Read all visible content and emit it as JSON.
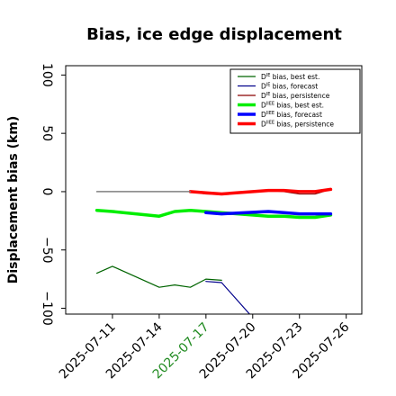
{
  "chart_data": {
    "type": "line",
    "title": "Bias, ice edge displacement",
    "ylabel": "Displacement bias (km)",
    "xlabel": "",
    "ylim": [
      -105,
      108
    ],
    "xlim": [
      "2025-07-08",
      "2025-07-27"
    ],
    "yticks": [
      -100,
      -50,
      0,
      50,
      100
    ],
    "ytick_labels": [
      "−100",
      "−50",
      "0",
      "50",
      "100"
    ],
    "xticks": [
      "2025-07-11",
      "2025-07-14",
      "2025-07-17",
      "2025-07-20",
      "2025-07-23",
      "2025-07-26"
    ],
    "highlight_xtick": "2025-07-17",
    "highlight_color": "#228B22",
    "grid": false,
    "legend_position": "top-right",
    "series": [
      {
        "name": "D^IE bias, best est.",
        "label_base": "D",
        "label_sup": "IE",
        "label_rest": " bias, best est.",
        "color": "#006400",
        "width": 1.2,
        "points": [
          [
            "2025-07-10",
            -70
          ],
          [
            "2025-07-11",
            -64
          ],
          [
            "2025-07-14",
            -82
          ],
          [
            "2025-07-15",
            -80
          ],
          [
            "2025-07-16",
            -82
          ],
          [
            "2025-07-17",
            -75
          ],
          [
            "2025-07-18",
            -76
          ]
        ]
      },
      {
        "name": "D^IE bias, forecast",
        "label_base": "D",
        "label_sup": "IE",
        "label_rest": " bias, forecast",
        "color": "#00008B",
        "width": 1.2,
        "points": [
          [
            "2025-07-17",
            -77
          ],
          [
            "2025-07-18",
            -78
          ],
          [
            "2025-07-20",
            -108
          ],
          [
            "2025-07-21",
            -108
          ]
        ]
      },
      {
        "name": "D^IE bias, persistence",
        "label_base": "D",
        "label_sup": "IE",
        "label_rest": " bias, persistence",
        "color": "#8B0000",
        "width": 1.2,
        "points": [
          [
            "2025-07-16",
            0
          ],
          [
            "2025-07-17",
            -2
          ],
          [
            "2025-07-18",
            -2
          ],
          [
            "2025-07-21",
            1
          ],
          [
            "2025-07-22",
            0
          ],
          [
            "2025-07-23",
            -2
          ],
          [
            "2025-07-24",
            -2
          ],
          [
            "2025-07-25",
            2
          ]
        ]
      },
      {
        "name": "D^IIEE bias, best est.",
        "label_base": "D",
        "label_sup": "IIEE",
        "label_rest": " bias, best est.",
        "color": "#00EE00",
        "width": 3.5,
        "points": [
          [
            "2025-07-10",
            -16
          ],
          [
            "2025-07-11",
            -17
          ],
          [
            "2025-07-14",
            -21
          ],
          [
            "2025-07-15",
            -17
          ],
          [
            "2025-07-16",
            -16
          ],
          [
            "2025-07-17",
            -17
          ],
          [
            "2025-07-21",
            -21
          ],
          [
            "2025-07-22",
            -21
          ],
          [
            "2025-07-23",
            -22
          ],
          [
            "2025-07-24",
            -22
          ],
          [
            "2025-07-25",
            -20
          ]
        ]
      },
      {
        "name": "D^IIEE bias, forecast",
        "label_base": "D",
        "label_sup": "IIEE",
        "label_rest": " bias, forecast",
        "color": "#0000FF",
        "width": 3.5,
        "points": [
          [
            "2025-07-17",
            -18
          ],
          [
            "2025-07-18",
            -19
          ],
          [
            "2025-07-21",
            -17
          ],
          [
            "2025-07-22",
            -18
          ],
          [
            "2025-07-23",
            -19
          ],
          [
            "2025-07-24",
            -19
          ],
          [
            "2025-07-25",
            -19
          ]
        ]
      },
      {
        "name": "D^IIEE bias, persistence",
        "label_base": "D",
        "label_sup": "IIEE",
        "label_rest": " bias, persistence",
        "color": "#FF0000",
        "width": 3.5,
        "points": [
          [
            "2025-07-16",
            0
          ],
          [
            "2025-07-17",
            -1
          ],
          [
            "2025-07-18",
            -2
          ],
          [
            "2025-07-21",
            1
          ],
          [
            "2025-07-22",
            1
          ],
          [
            "2025-07-23",
            0
          ],
          [
            "2025-07-24",
            0
          ],
          [
            "2025-07-25",
            2
          ]
        ]
      },
      {
        "name": "",
        "label_base": "",
        "label_sup": "",
        "label_rest": "",
        "color": "#808080",
        "width": 1.5,
        "in_legend": false,
        "points": [
          [
            "2025-07-10",
            0
          ],
          [
            "2025-07-11",
            0
          ],
          [
            "2025-07-14",
            0
          ],
          [
            "2025-07-16",
            0
          ]
        ]
      }
    ]
  }
}
